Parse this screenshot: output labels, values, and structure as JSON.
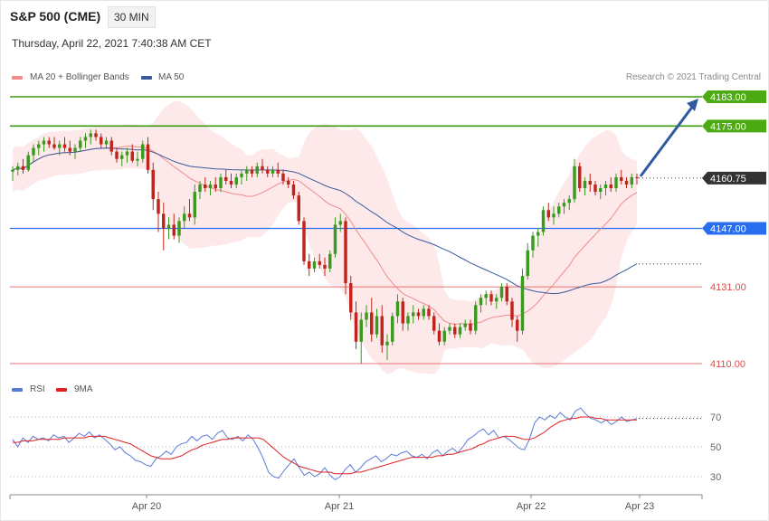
{
  "header": {
    "symbol": "S&P 500 (CME)",
    "timeframe": "30 MIN",
    "datetime": "Thursday, April 22, 2021 7:40:38 AM CET"
  },
  "legend": {
    "ma20": "MA 20 + Bollinger Bands",
    "ma50": "MA 50",
    "rsi": "RSI",
    "ma9": "9MA"
  },
  "copyright": "Research © 2021 Trading Central",
  "colors": {
    "ma20": "#f28a8a",
    "ma50": "#3a5a9c",
    "bollinger_fill": "#fde3e3",
    "up": "#3a9a1f",
    "down": "#c0241c",
    "resistance": "#3a9a0f",
    "pivot": "#2a6ef0",
    "support": "#e04a4a",
    "last": "#333333",
    "rsi": "#5a7ad8",
    "rsi_ma": "#e02020",
    "arrow": "#2e5a9e"
  },
  "chart_data": [
    {
      "type": "candlestick",
      "title": "S&P 500 (CME)",
      "ylim": [
        4100,
        4190
      ],
      "x_ticks": [
        "Apr 20",
        "Apr 21",
        "Apr 22",
        "Apr 23"
      ],
      "last_price": "4160.75",
      "levels": [
        {
          "label": "4183.00",
          "value": 4183.0,
          "kind": "resistance"
        },
        {
          "label": "4175.00",
          "value": 4175.0,
          "kind": "resistance"
        },
        {
          "label": "4147.00",
          "value": 4147.0,
          "kind": "pivot"
        },
        {
          "label": "4131.00",
          "value": 4131.0,
          "kind": "support"
        },
        {
          "label": "4110.00",
          "value": 4110.0,
          "kind": "support"
        }
      ],
      "candles": [
        [
          4162.5,
          4164,
          4160,
          4163
        ],
        [
          4163,
          4165,
          4161.5,
          4164
        ],
        [
          4164,
          4166,
          4162,
          4163
        ],
        [
          4163,
          4168,
          4162.5,
          4167
        ],
        [
          4167,
          4170,
          4165,
          4169
        ],
        [
          4169,
          4171,
          4167,
          4170
        ],
        [
          4170,
          4172,
          4168,
          4171
        ],
        [
          4171,
          4172,
          4169,
          4170
        ],
        [
          4170,
          4172,
          4168.5,
          4169
        ],
        [
          4169,
          4171,
          4167,
          4170
        ],
        [
          4170,
          4172,
          4168,
          4169
        ],
        [
          4169,
          4171,
          4167,
          4168
        ],
        [
          4168,
          4170,
          4166,
          4169
        ],
        [
          4169,
          4172,
          4168,
          4171
        ],
        [
          4171,
          4173,
          4169,
          4172
        ],
        [
          4172,
          4174,
          4170,
          4173
        ],
        [
          4173,
          4174,
          4171,
          4172
        ],
        [
          4172,
          4173,
          4169,
          4170
        ],
        [
          4170,
          4172,
          4169,
          4171
        ],
        [
          4171,
          4172,
          4167,
          4168
        ],
        [
          4168,
          4169,
          4165,
          4166
        ],
        [
          4166,
          4168,
          4164,
          4167
        ],
        [
          4167,
          4169,
          4165,
          4168
        ],
        [
          4168,
          4170,
          4165,
          4165.5
        ],
        [
          4165.5,
          4168,
          4164,
          4166
        ],
        [
          4166,
          4171,
          4165,
          4170
        ],
        [
          4170,
          4172,
          4162,
          4163
        ],
        [
          4163,
          4165,
          4152,
          4155
        ],
        [
          4155,
          4157,
          4146,
          4151
        ],
        [
          4151,
          4154,
          4141,
          4147
        ],
        [
          4147,
          4150,
          4144,
          4148
        ],
        [
          4148,
          4151,
          4144,
          4145
        ],
        [
          4145,
          4150,
          4143,
          4149
        ],
        [
          4149,
          4153,
          4147,
          4151
        ],
        [
          4151,
          4155,
          4149,
          4150
        ],
        [
          4150,
          4159,
          4148,
          4157
        ],
        [
          4157,
          4160,
          4155,
          4159
        ],
        [
          4159,
          4161,
          4157,
          4158
        ],
        [
          4158,
          4160,
          4156,
          4159
        ],
        [
          4159,
          4161,
          4157,
          4158
        ],
        [
          4158,
          4162,
          4157,
          4161
        ],
        [
          4161,
          4163,
          4159,
          4160
        ],
        [
          4160,
          4162,
          4158,
          4159
        ],
        [
          4159,
          4162,
          4158,
          4161
        ],
        [
          4161,
          4163,
          4159,
          4162
        ],
        [
          4162,
          4164,
          4160,
          4163
        ],
        [
          4163,
          4164,
          4161,
          4162
        ],
        [
          4162,
          4165,
          4161,
          4164
        ],
        [
          4164,
          4166,
          4162,
          4163
        ],
        [
          4163,
          4164,
          4161,
          4162
        ],
        [
          4162,
          4164,
          4161,
          4163
        ],
        [
          4163,
          4165,
          4161,
          4162
        ],
        [
          4162,
          4163,
          4159,
          4160
        ],
        [
          4160,
          4161,
          4158,
          4159
        ],
        [
          4159,
          4160,
          4155,
          4156
        ],
        [
          4156,
          4157,
          4148,
          4149
        ],
        [
          4149,
          4150,
          4137,
          4138
        ],
        [
          4138,
          4140,
          4134,
          4136
        ],
        [
          4136,
          4139,
          4135,
          4138
        ],
        [
          4138,
          4140,
          4136,
          4137
        ],
        [
          4137,
          4139,
          4134,
          4136
        ],
        [
          4136,
          4141,
          4135,
          4140
        ],
        [
          4140,
          4150,
          4139,
          4148
        ],
        [
          4148,
          4151,
          4146,
          4149
        ],
        [
          4149,
          4150,
          4129,
          4132
        ],
        [
          4132,
          4134,
          4122,
          4124
        ],
        [
          4124,
          4127,
          4114,
          4116
        ],
        [
          4116,
          4124,
          4110,
          4122
        ],
        [
          4122,
          4126,
          4120,
          4124
        ],
        [
          4124,
          4128,
          4116,
          4118
        ],
        [
          4118,
          4125,
          4117,
          4123
        ],
        [
          4123,
          4126,
          4113,
          4115
        ],
        [
          4115,
          4118,
          4111,
          4116
        ],
        [
          4116,
          4124,
          4115,
          4123
        ],
        [
          4123,
          4129,
          4121,
          4127
        ],
        [
          4127,
          4128,
          4119,
          4121
        ],
        [
          4121,
          4124,
          4119,
          4123
        ],
        [
          4123,
          4126,
          4121,
          4124
        ],
        [
          4124,
          4125,
          4122,
          4123
        ],
        [
          4123,
          4126,
          4122,
          4125
        ],
        [
          4125,
          4126,
          4122,
          4123
        ],
        [
          4123,
          4124,
          4118,
          4119
        ],
        [
          4119,
          4121,
          4115,
          4116
        ],
        [
          4116,
          4120,
          4115,
          4119
        ],
        [
          4119,
          4121,
          4118,
          4120
        ],
        [
          4120,
          4121,
          4117,
          4118
        ],
        [
          4118,
          4121,
          4117,
          4120
        ],
        [
          4120,
          4122,
          4119,
          4121
        ],
        [
          4121,
          4122,
          4118,
          4119
        ],
        [
          4119,
          4127,
          4118,
          4126
        ],
        [
          4126,
          4129,
          4124,
          4128
        ],
        [
          4128,
          4130,
          4126,
          4129
        ],
        [
          4129,
          4130,
          4126,
          4127
        ],
        [
          4127,
          4129,
          4125,
          4128
        ],
        [
          4128,
          4132,
          4127,
          4131
        ],
        [
          4131,
          4132,
          4126,
          4127
        ],
        [
          4127,
          4128,
          4120,
          4122
        ],
        [
          4122,
          4123,
          4116,
          4119
        ],
        [
          4119,
          4136,
          4118,
          4134
        ],
        [
          4134,
          4143,
          4133,
          4141
        ],
        [
          4141,
          4146,
          4139,
          4145
        ],
        [
          4145,
          4147,
          4142,
          4146
        ],
        [
          4146,
          4153,
          4145,
          4152
        ],
        [
          4152,
          4154,
          4149,
          4150
        ],
        [
          4150,
          4153,
          4148,
          4151
        ],
        [
          4151,
          4154,
          4150,
          4153
        ],
        [
          4153,
          4155,
          4151,
          4154
        ],
        [
          4154,
          4156,
          4152,
          4155
        ],
        [
          4155,
          4166,
          4154,
          4164
        ],
        [
          4164,
          4165,
          4157,
          4158
        ],
        [
          4158,
          4161,
          4156,
          4160
        ],
        [
          4160,
          4162,
          4157,
          4159
        ],
        [
          4159,
          4160,
          4156,
          4157
        ],
        [
          4157,
          4159,
          4155,
          4158
        ],
        [
          4158,
          4160,
          4156,
          4159
        ],
        [
          4159,
          4161,
          4157,
          4158
        ],
        [
          4158,
          4162,
          4157,
          4161
        ],
        [
          4161,
          4163,
          4159,
          4160
        ],
        [
          4160,
          4161,
          4158,
          4159
        ],
        [
          4159,
          4162,
          4158,
          4161
        ],
        [
          4161,
          4162,
          4159,
          4160.75
        ]
      ]
    },
    {
      "type": "line",
      "title": "RSI",
      "ylim": [
        20,
        80
      ],
      "y_ticks": [
        30,
        50,
        70
      ],
      "series": [
        {
          "name": "RSI",
          "values": [
            55,
            50,
            56,
            53,
            57,
            55,
            56,
            54,
            58,
            56,
            57,
            53,
            56,
            59,
            57,
            60,
            56,
            58,
            55,
            52,
            48,
            50,
            46,
            44,
            41,
            40,
            38,
            37,
            42,
            44,
            47,
            45,
            50,
            52,
            53,
            57,
            54,
            57,
            58,
            55,
            59,
            61,
            56,
            55,
            57,
            54,
            58,
            55,
            49,
            42,
            33,
            30,
            29,
            34,
            38,
            42,
            36,
            31,
            33,
            30,
            32,
            36,
            31,
            28,
            30,
            35,
            38,
            33,
            36,
            40,
            42,
            44,
            40,
            42,
            45,
            44,
            46,
            47,
            44,
            43,
            45,
            42,
            46,
            48,
            44,
            47,
            49,
            46,
            50,
            55,
            57,
            60,
            62,
            58,
            61,
            56,
            57,
            55,
            52,
            49,
            48,
            55,
            66,
            70,
            68,
            71,
            69,
            73,
            70,
            68,
            74,
            76,
            72,
            69,
            68,
            66,
            68,
            65,
            67,
            70,
            67,
            68,
            69
          ]
        },
        {
          "name": "9MA",
          "values": [
            53,
            53,
            54,
            54,
            54,
            55,
            55,
            55,
            55,
            55,
            56,
            56,
            56,
            56,
            56,
            57,
            57,
            57,
            57,
            56,
            55,
            54,
            53,
            52,
            50,
            48,
            46,
            44,
            43,
            42,
            42,
            42,
            43,
            44,
            46,
            48,
            49,
            51,
            52,
            53,
            54,
            55,
            55,
            56,
            56,
            56,
            56,
            56,
            56,
            55,
            52,
            49,
            46,
            43,
            41,
            39,
            37,
            36,
            35,
            34,
            33,
            33,
            33,
            32,
            32,
            32,
            32,
            33,
            33,
            34,
            35,
            36,
            37,
            38,
            39,
            40,
            41,
            42,
            43,
            43,
            43,
            43,
            43,
            44,
            44,
            45,
            45,
            46,
            47,
            48,
            49,
            51,
            52,
            54,
            55,
            56,
            57,
            57,
            57,
            56,
            55,
            55,
            56,
            58,
            60,
            63,
            65,
            67,
            68,
            69,
            69,
            70,
            70,
            70,
            69,
            69,
            68,
            68,
            68,
            68,
            68,
            68,
            68
          ]
        }
      ]
    }
  ]
}
